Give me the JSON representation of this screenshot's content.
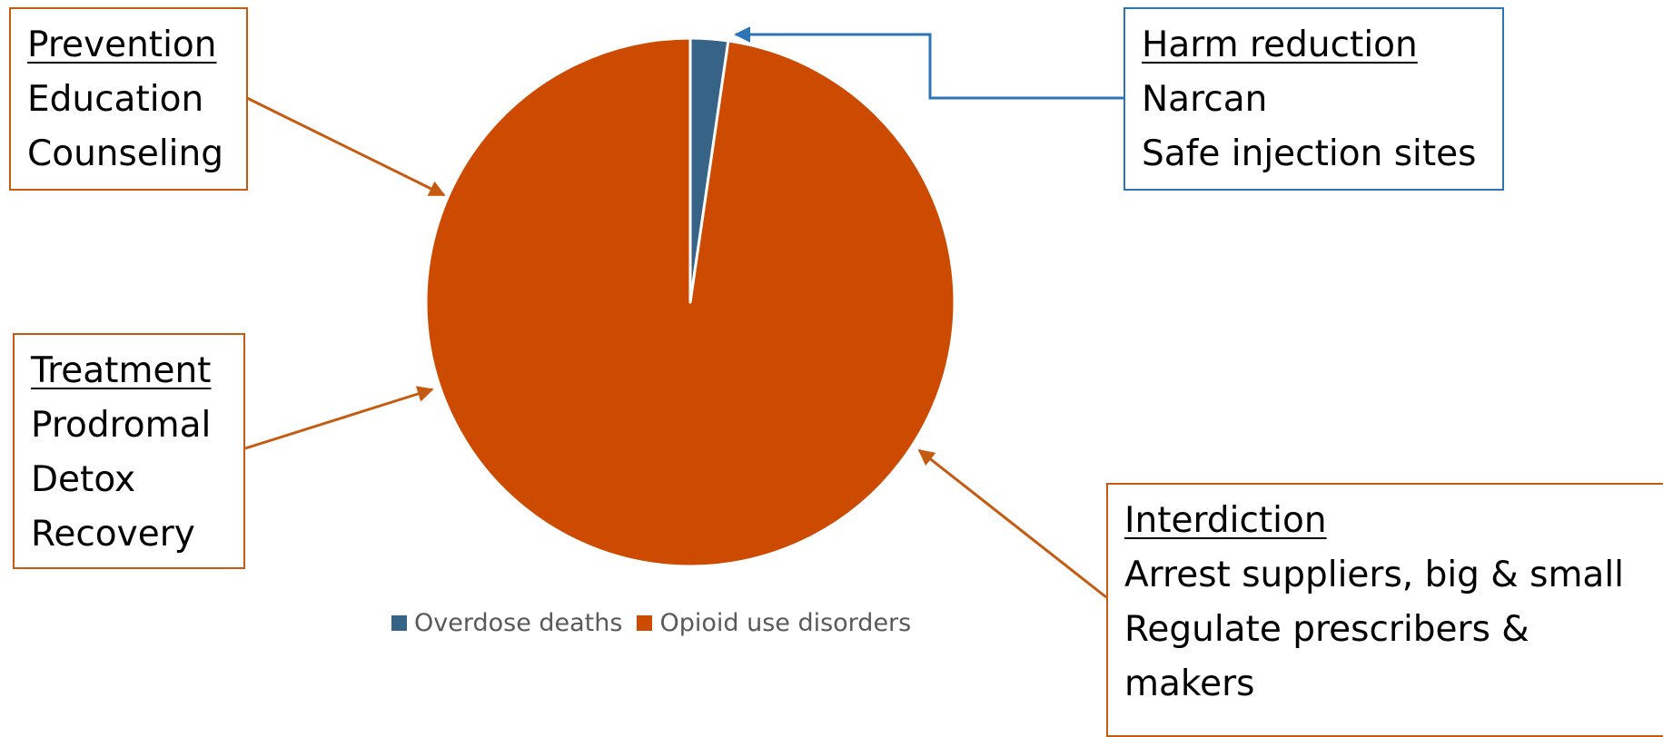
{
  "chart_data": {
    "type": "pie",
    "title": "",
    "slices": [
      {
        "name": "Overdose deaths",
        "value": 2.3,
        "color": "#376387"
      },
      {
        "name": "Opioid use disorders",
        "value": 97.7,
        "color": "#cc4b00"
      }
    ],
    "legend_position": "bottom",
    "start_angle": "12 o'clock, clockwise"
  },
  "callouts": {
    "prevention": {
      "heading": "Prevention",
      "lines": [
        "Education",
        "Counseling"
      ],
      "border_color": "#c55a11",
      "points_to": "Opioid use disorders"
    },
    "treatment": {
      "heading": "Treatment",
      "lines": [
        "Prodromal",
        "Detox",
        "Recovery"
      ],
      "border_color": "#c55a11",
      "points_to": "Opioid use disorders"
    },
    "harm_reduction": {
      "heading": "Harm reduction",
      "lines": [
        "Narcan",
        "Safe injection sites"
      ],
      "border_color": "#2e75b6",
      "points_to": "Overdose deaths"
    },
    "interdiction": {
      "heading": "Interdiction",
      "lines": [
        "Arrest suppliers, big  & small",
        "Regulate prescribers &",
        "makers"
      ],
      "border_color": "#c55a11",
      "points_to": "Opioid use disorders"
    }
  },
  "colors": {
    "arrow_orange": "#c55a11",
    "arrow_blue": "#2e75b6",
    "legend_text": "#595959"
  }
}
